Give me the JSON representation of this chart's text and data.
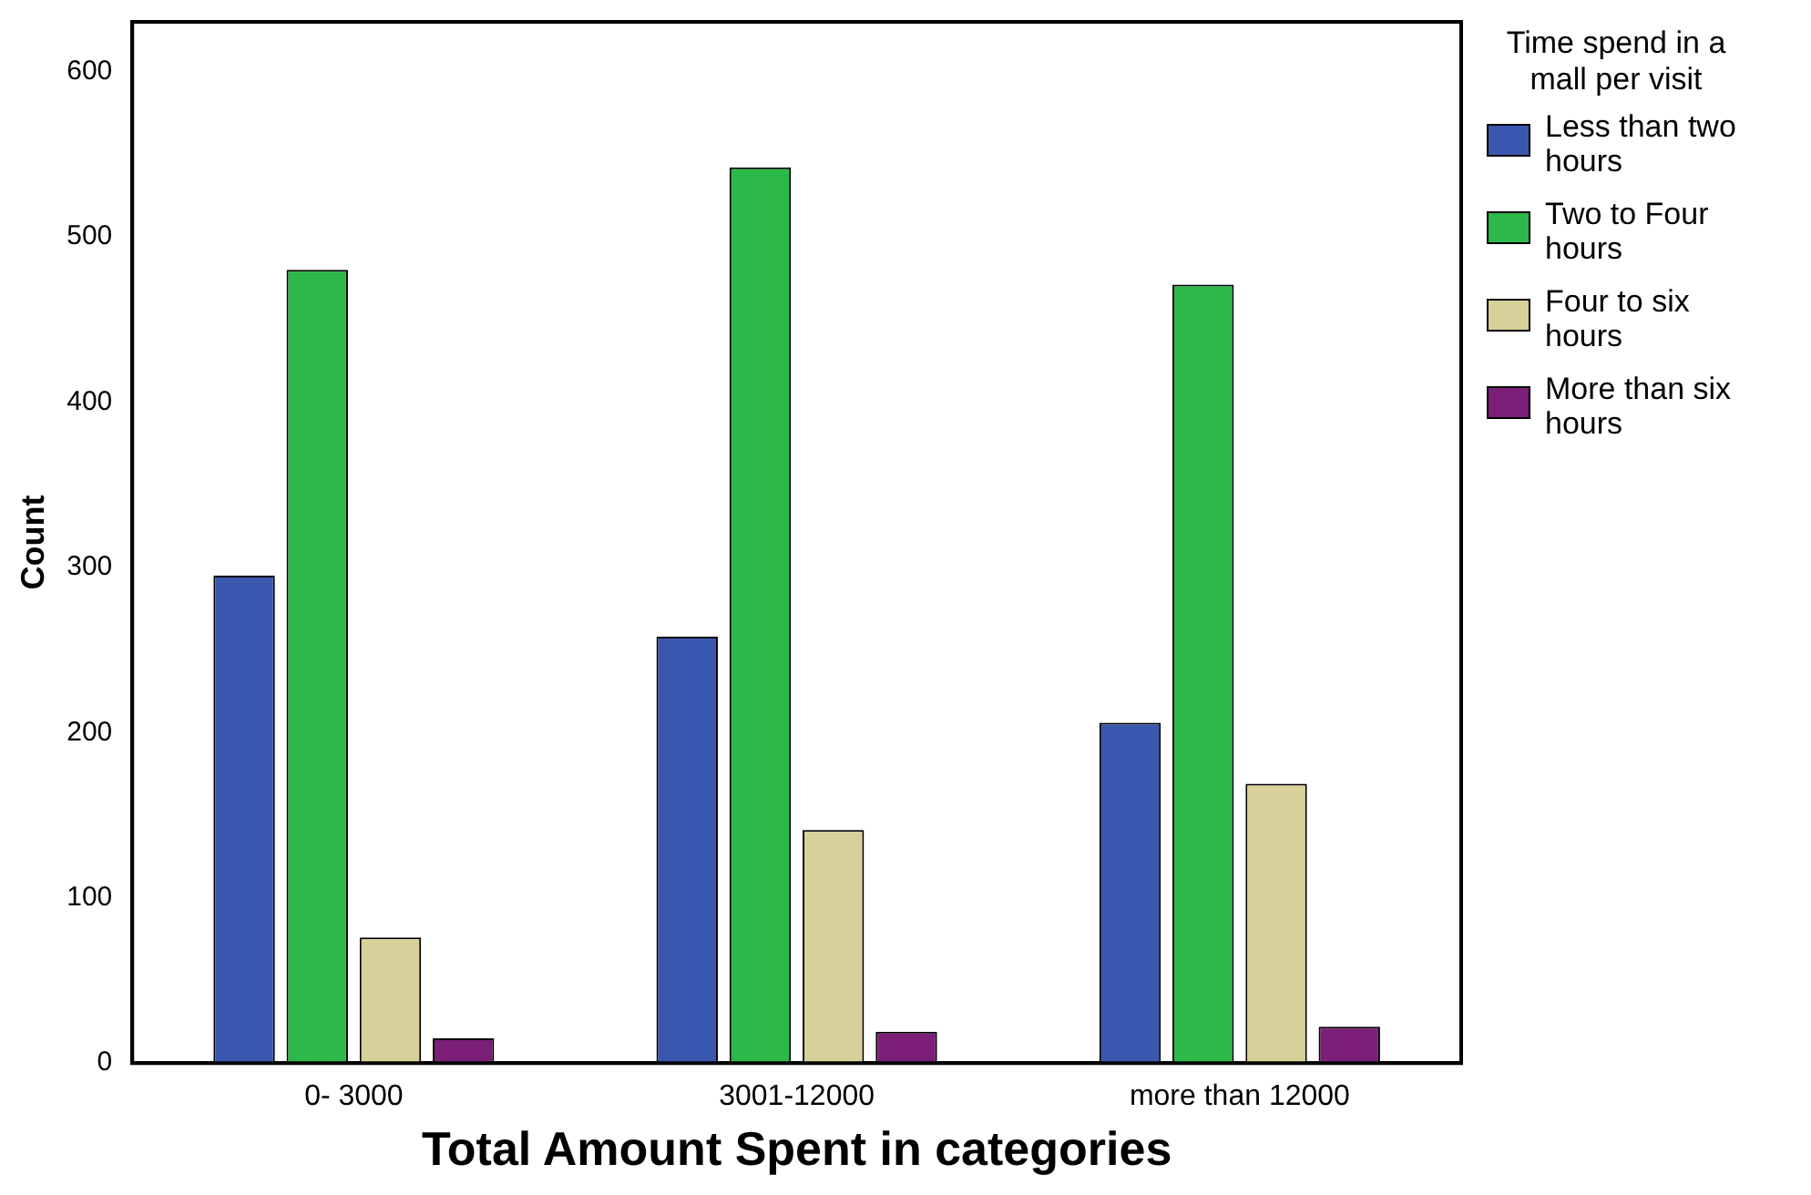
{
  "chart_data": {
    "type": "bar",
    "xlabel": "Total Amount Spent in categories",
    "ylabel": "Count",
    "legend_title": "Time spend in a mall per visit",
    "legend": "top right",
    "categories": [
      "0- 3000",
      "3001-12000",
      "more than 12000"
    ],
    "series": [
      {
        "name": "Less than two hours",
        "color": "#3a57b0",
        "values": [
          295,
          258,
          206
        ]
      },
      {
        "name": "Two to Four hours",
        "color": "#2db84a",
        "values": [
          480,
          542,
          471
        ]
      },
      {
        "name": "Four to six hours",
        "color": "#d7d09a",
        "values": [
          76,
          141,
          169
        ]
      },
      {
        "name": "More than six hours",
        "color": "#7b1f78",
        "values": [
          15,
          19,
          22
        ]
      }
    ],
    "ylim": [
      0,
      630
    ],
    "yticks": [
      0,
      100,
      200,
      300,
      400,
      500,
      600
    ],
    "grid": false
  }
}
